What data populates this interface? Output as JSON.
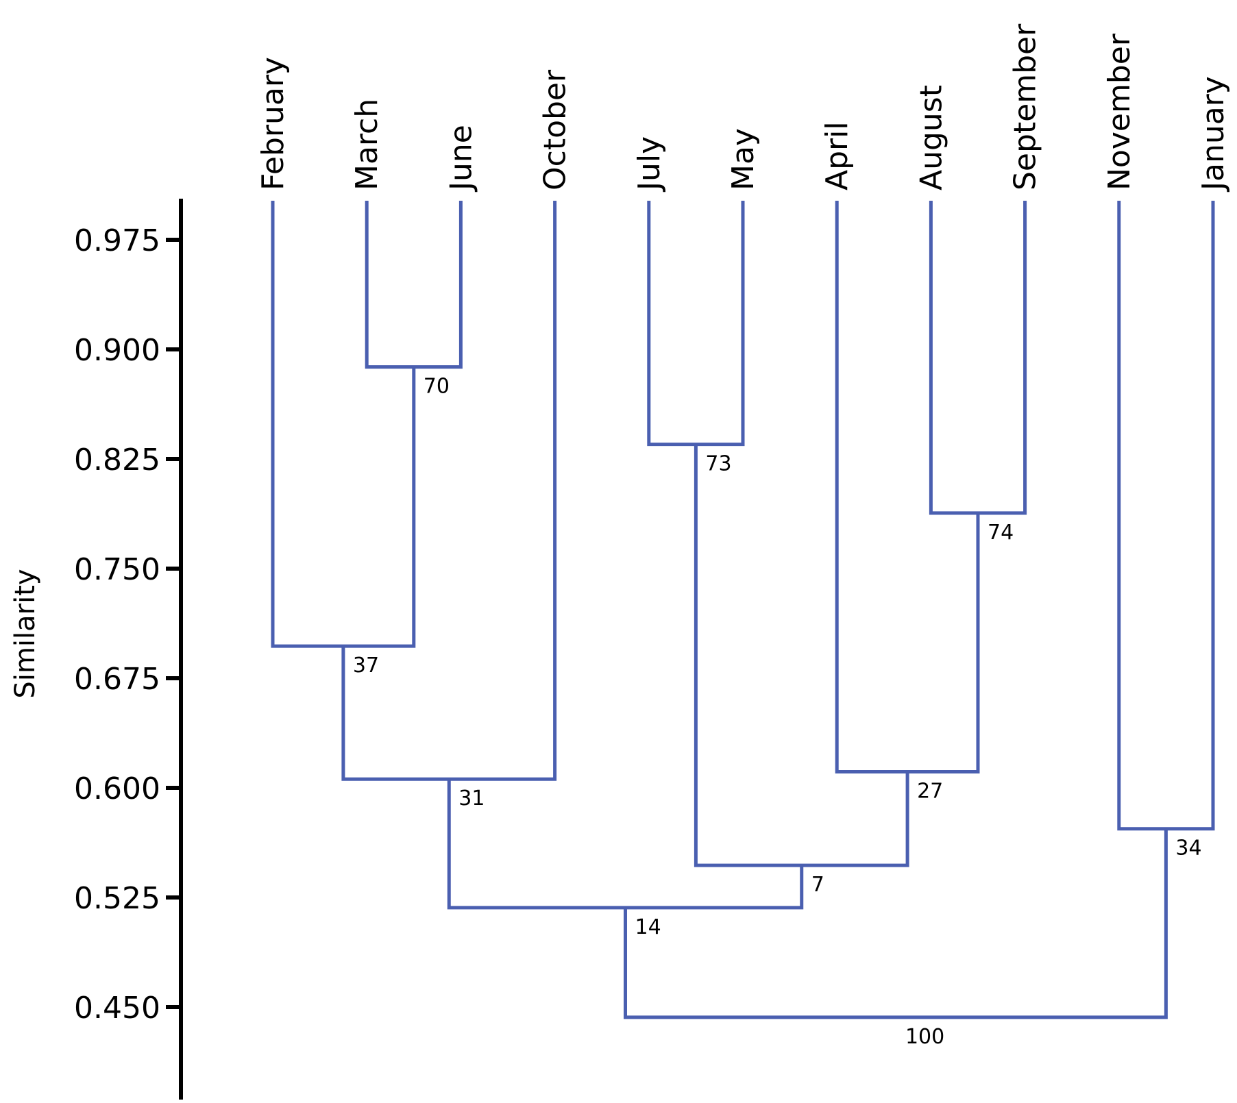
{
  "chart_data": {
    "type": "dendrogram",
    "title": "",
    "xlabel": "",
    "ylabel": "Similarity",
    "ylim": [
      0.4,
      1.0
    ],
    "yticks": [
      0.975,
      0.9,
      0.825,
      0.75,
      0.675,
      0.6,
      0.525,
      0.45
    ],
    "ytick_labels": [
      "0.975",
      "0.900",
      "0.825",
      "0.750",
      "0.675",
      "0.600",
      "0.525",
      "0.450"
    ],
    "link_color": "#4a5fb0",
    "leaves": [
      "February",
      "March",
      "June",
      "October",
      "July",
      "May",
      "April",
      "August",
      "September",
      "November",
      "January"
    ],
    "merges": [
      {
        "id": "n70",
        "left": "March",
        "right": "June",
        "similarity": 0.888,
        "label": "70"
      },
      {
        "id": "n73",
        "left": "July",
        "right": "May",
        "similarity": 0.835,
        "label": "73"
      },
      {
        "id": "n74",
        "left": "August",
        "right": "September",
        "similarity": 0.788,
        "label": "74"
      },
      {
        "id": "n37",
        "left": "February",
        "right": "n70",
        "similarity": 0.697,
        "label": "37"
      },
      {
        "id": "n31",
        "left": "n37",
        "right": "October",
        "similarity": 0.606,
        "label": "31"
      },
      {
        "id": "n27",
        "left": "April",
        "right": "n74",
        "similarity": 0.611,
        "label": "27"
      },
      {
        "id": "n34",
        "left": "November",
        "right": "January",
        "similarity": 0.572,
        "label": "34"
      },
      {
        "id": "n7",
        "left": "n73",
        "right": "n27",
        "similarity": 0.547,
        "label": "7"
      },
      {
        "id": "n14",
        "left": "n31",
        "right": "n7",
        "similarity": 0.518,
        "label": "14"
      },
      {
        "id": "n100",
        "left": "n14",
        "right": "n34",
        "similarity": 0.443,
        "label": "100"
      }
    ]
  }
}
